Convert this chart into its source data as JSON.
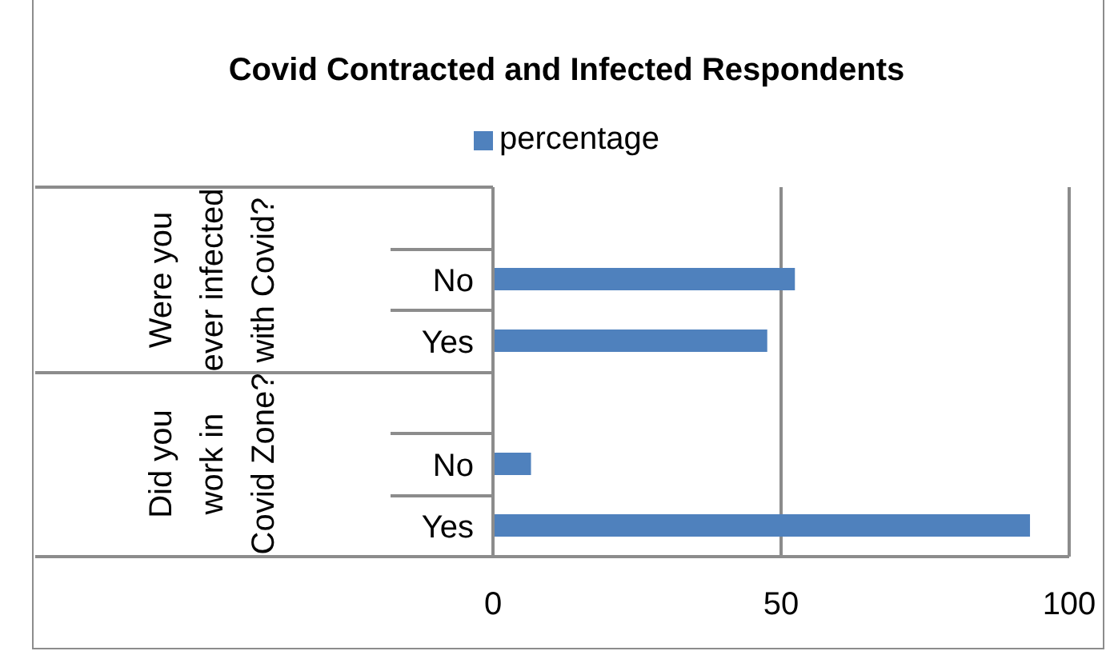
{
  "chart_data": {
    "type": "bar",
    "orientation": "horizontal",
    "title": "Covid Contracted and Infected Respondents",
    "categories": [
      null,
      "No",
      "Yes",
      null,
      "No",
      "Yes"
    ],
    "series": [
      {
        "name": "percentage",
        "color": "#4f81bd",
        "values": [
          null,
          52.4,
          47.6,
          null,
          6.6,
          93.2
        ]
      }
    ],
    "annotations": [
      "Were you ever infected with Covid?",
      "Did you work in Covid Zone?"
    ],
    "xlim": [
      0,
      100
    ],
    "xticks": [
      0,
      50,
      100
    ],
    "grid": "x",
    "legend": "top"
  }
}
